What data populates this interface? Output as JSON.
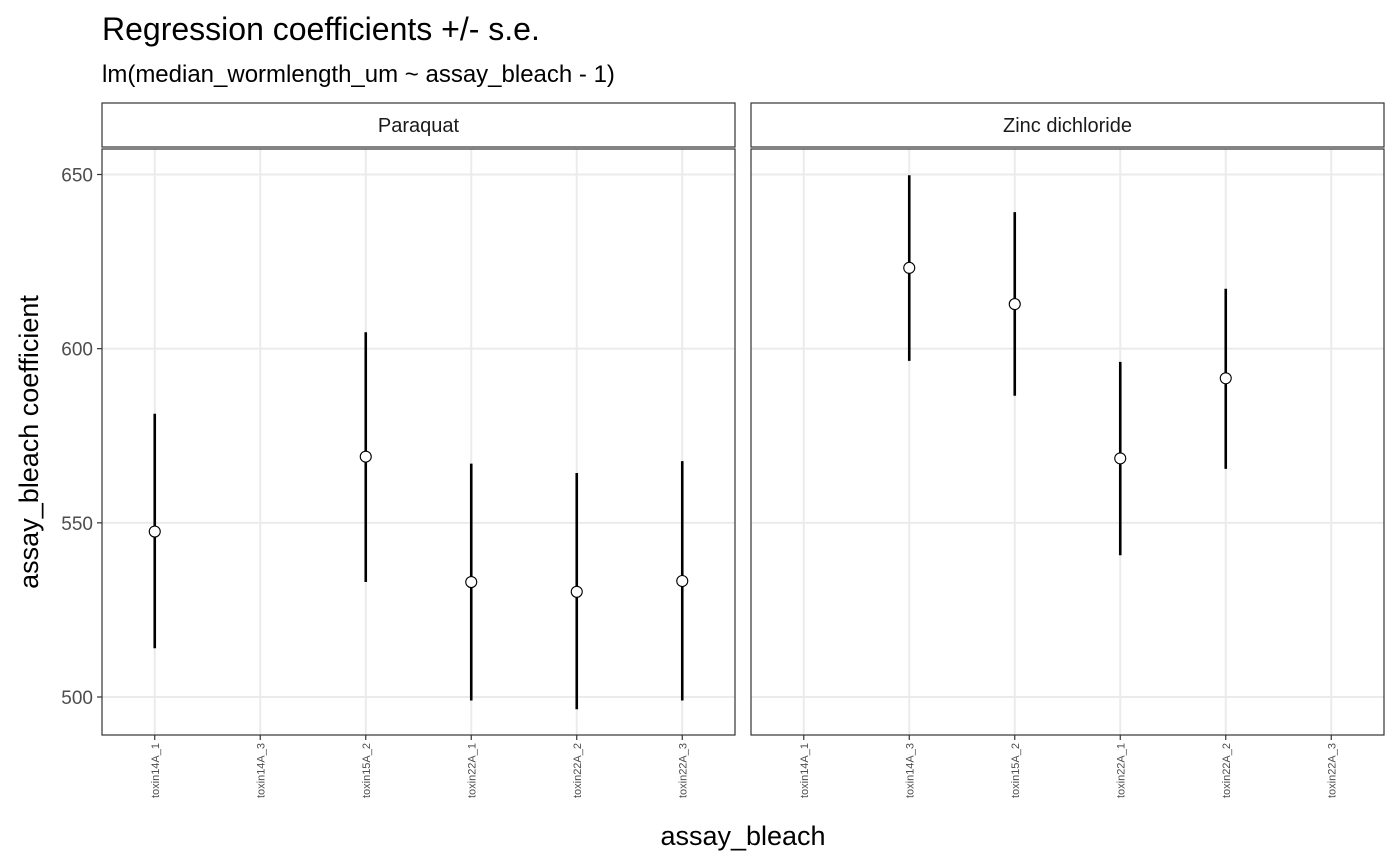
{
  "chart_data": {
    "type": "errorbar",
    "title": "Regression coefficients +/- s.e.",
    "subtitle": "lm(median_wormlength_um ~ assay_bleach - 1)",
    "xlabel": "assay_bleach",
    "ylabel": "assay_bleach coefficient",
    "yticks": [
      500,
      550,
      600,
      650
    ],
    "ylim": [
      489,
      657
    ],
    "grid": true,
    "categories": [
      "toxin14A_1",
      "toxin14A_3",
      "toxin15A_2",
      "toxin22A_1",
      "toxin22A_2",
      "toxin22A_3"
    ],
    "panels": [
      {
        "name": "Paraquat",
        "points": [
          {
            "x": "toxin14A_1",
            "estimate": 547.5,
            "lower": 514,
            "upper": 581.3
          },
          {
            "x": "toxin15A_2",
            "estimate": 569,
            "lower": 533,
            "upper": 604.7
          },
          {
            "x": "toxin22A_1",
            "estimate": 533,
            "lower": 499,
            "upper": 567
          },
          {
            "x": "toxin22A_2",
            "estimate": 530.2,
            "lower": 496.5,
            "upper": 564.3
          },
          {
            "x": "toxin22A_3",
            "estimate": 533.3,
            "lower": 499,
            "upper": 567.7
          }
        ]
      },
      {
        "name": "Zinc dichloride",
        "points": [
          {
            "x": "toxin14A_3",
            "estimate": 623.2,
            "lower": 596.5,
            "upper": 649.8
          },
          {
            "x": "toxin15A_2",
            "estimate": 612.8,
            "lower": 586.5,
            "upper": 639.2
          },
          {
            "x": "toxin22A_1",
            "estimate": 568.5,
            "lower": 540.7,
            "upper": 596.2
          },
          {
            "x": "toxin22A_2",
            "estimate": 591.5,
            "lower": 565.5,
            "upper": 617.2
          }
        ]
      }
    ]
  }
}
